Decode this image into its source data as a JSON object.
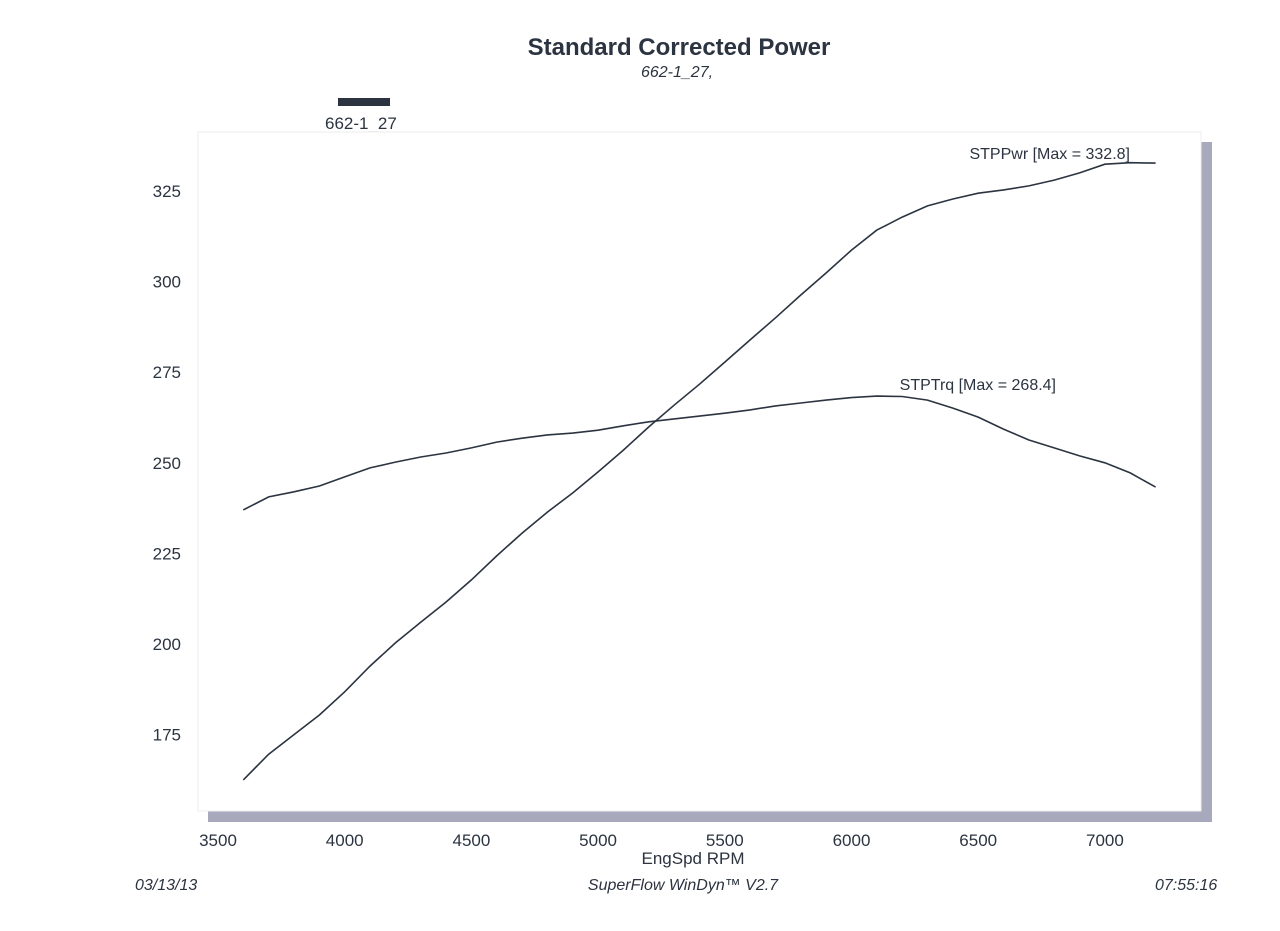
{
  "chart_data": {
    "type": "line",
    "title": "Standard Corrected Power",
    "subtitle": "662-1_27,",
    "legend": [
      {
        "label": "662-1_27",
        "color": "#2b3440"
      }
    ],
    "legend_position": "top-left",
    "xlabel": "EngSpd  RPM",
    "ylabel": "",
    "xlim": [
      3500,
      7250
    ],
    "ylim": [
      155,
      340
    ],
    "xticks": [
      3500,
      4000,
      4500,
      5000,
      5500,
      6000,
      6500,
      7000
    ],
    "yticks": [
      175,
      200,
      225,
      250,
      275,
      300,
      325
    ],
    "grid": false,
    "x": [
      3600,
      3700,
      3800,
      3900,
      4000,
      4100,
      4200,
      4300,
      4400,
      4500,
      4600,
      4700,
      4800,
      4900,
      5000,
      5100,
      5200,
      5300,
      5400,
      5500,
      5600,
      5700,
      5800,
      5900,
      6000,
      6100,
      6200,
      6300,
      6400,
      6500,
      6600,
      6700,
      6800,
      6900,
      7000,
      7100,
      7200
    ],
    "series": [
      {
        "name": "STPPwr",
        "annotation": "STPPwr [Max = 332.8]",
        "values": [
          162.5,
          169.6,
          175.0,
          180.4,
          186.8,
          193.9,
          200.3,
          206.0,
          211.6,
          217.7,
          224.3,
          230.6,
          236.4,
          241.7,
          247.5,
          253.5,
          259.9,
          265.9,
          271.7,
          277.8,
          283.9,
          290.0,
          296.3,
          302.4,
          308.7,
          314.2,
          317.8,
          320.9,
          322.8,
          324.4,
          325.3,
          326.4,
          328.0,
          330.0,
          332.4,
          332.8,
          332.7
        ]
      },
      {
        "name": "STPTrq",
        "annotation": "STPTrq [Max = 268.4]",
        "values": [
          237.0,
          240.6,
          242.0,
          243.6,
          246.1,
          248.6,
          250.2,
          251.6,
          252.7,
          254.1,
          255.7,
          256.8,
          257.7,
          258.2,
          259.0,
          260.2,
          261.3,
          262.1,
          262.9,
          263.7,
          264.6,
          265.7,
          266.5,
          267.3,
          268.0,
          268.4,
          268.3,
          267.3,
          265.1,
          262.6,
          259.3,
          256.3,
          254.1,
          251.9,
          250.0,
          247.2,
          243.3
        ]
      }
    ]
  },
  "footer": {
    "date": "03/13/13",
    "software": "SuperFlow WinDyn™ V2.7",
    "time": "07:55:16"
  }
}
